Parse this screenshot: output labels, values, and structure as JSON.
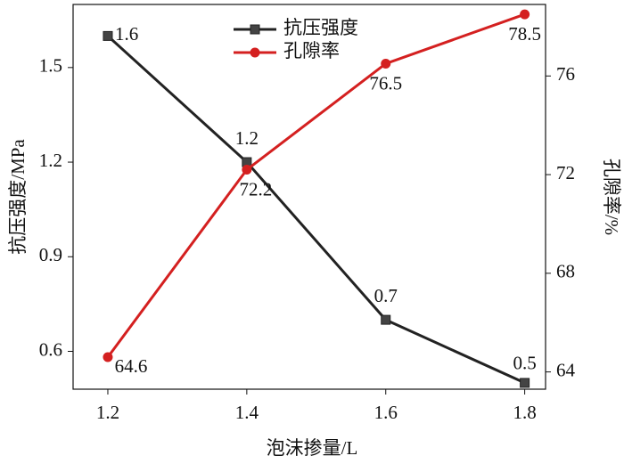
{
  "chart_data": {
    "type": "line",
    "x_label": "泡沫掺量/L",
    "y_label": "抗压强度/MPa",
    "y2_label": "孔隙率/%",
    "x": [
      1.2,
      1.4,
      1.6,
      1.8
    ],
    "xlim": [
      1.15,
      1.83
    ],
    "xticks": [
      1.2,
      1.4,
      1.6,
      1.8
    ],
    "ylim": [
      0.48,
      1.7
    ],
    "yticks": [
      0.6,
      0.9,
      1.2,
      1.5
    ],
    "y2lim": [
      63.3,
      78.9
    ],
    "y2ticks": [
      64,
      68,
      72,
      76
    ],
    "legend": "top",
    "series": [
      {
        "name": "抗压强度",
        "color": "#222222",
        "marker": "square",
        "values": [
          1.6,
          1.2,
          0.7,
          0.5
        ]
      },
      {
        "name": "孔隙率",
        "color": "#d42020",
        "marker": "circle",
        "axis": "y2",
        "values": [
          64.6,
          72.2,
          76.5,
          78.5
        ]
      }
    ]
  }
}
